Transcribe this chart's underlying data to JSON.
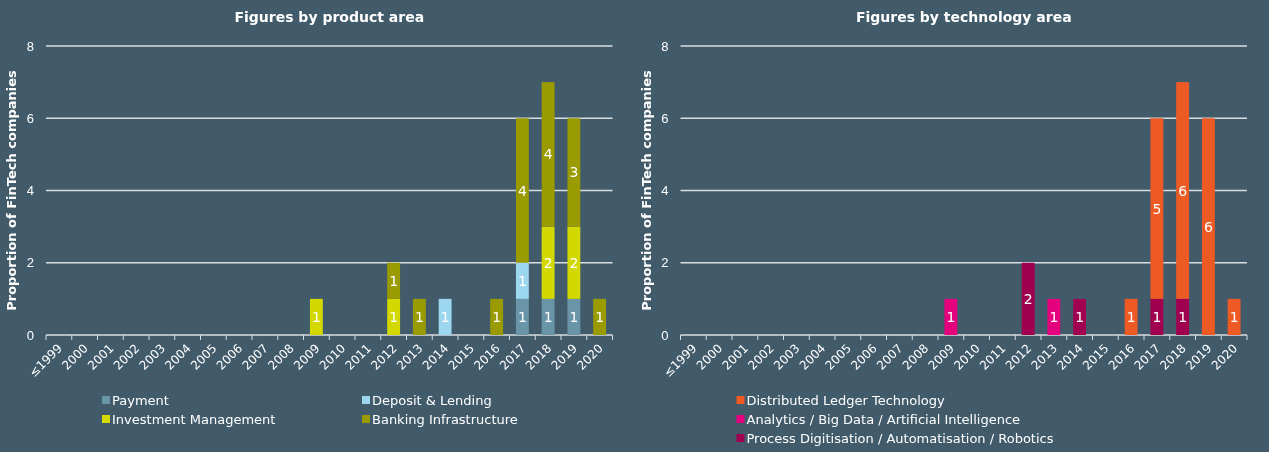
{
  "chart_data": [
    {
      "type": "bar",
      "title": "Figures by product area",
      "ylabel": "Proportion of FinTech companies",
      "categories": [
        "≤1999",
        "2000",
        "2001",
        "2002",
        "2003",
        "2004",
        "2005",
        "2006",
        "2007",
        "2008",
        "2009",
        "2010",
        "2011",
        "2012",
        "2013",
        "2014",
        "2015",
        "2016",
        "2017",
        "2018",
        "2019",
        "2020"
      ],
      "stacked": true,
      "ylim": [
        0,
        8
      ],
      "yticks": [
        0,
        2,
        4,
        6,
        8
      ],
      "grid": "y",
      "legend": "bottom",
      "data_labels": true,
      "series": [
        {
          "name": "Payment",
          "color": "#6a95a8",
          "values": [
            null,
            null,
            null,
            null,
            null,
            null,
            null,
            null,
            null,
            null,
            null,
            null,
            null,
            null,
            null,
            null,
            null,
            null,
            1,
            1,
            1,
            null
          ]
        },
        {
          "name": "Deposit & Lending",
          "color": "#9dd6ef",
          "values": [
            null,
            null,
            null,
            null,
            null,
            null,
            null,
            null,
            null,
            null,
            null,
            null,
            null,
            null,
            null,
            1,
            null,
            null,
            1,
            null,
            null,
            null
          ]
        },
        {
          "name": "Investment Management",
          "color": "#d2d800",
          "values": [
            null,
            null,
            null,
            null,
            null,
            null,
            null,
            null,
            null,
            null,
            1,
            null,
            null,
            1,
            null,
            null,
            null,
            null,
            null,
            2,
            2,
            null
          ]
        },
        {
          "name": "Banking Infrastructure",
          "color": "#999b00",
          "values": [
            null,
            null,
            null,
            null,
            null,
            null,
            null,
            null,
            null,
            null,
            null,
            null,
            null,
            1,
            1,
            null,
            null,
            1,
            4,
            4,
            3,
            1
          ]
        }
      ]
    },
    {
      "type": "bar",
      "title": "Figures by technology area",
      "ylabel": "Proportion of FinTech companies",
      "categories": [
        "≤1999",
        "2000",
        "2001",
        "2002",
        "2003",
        "2004",
        "2005",
        "2006",
        "2007",
        "2008",
        "2009",
        "2010",
        "2011",
        "2012",
        "2013",
        "2014",
        "2015",
        "2016",
        "2017",
        "2018",
        "2019",
        "2020"
      ],
      "stacked": true,
      "ylim": [
        0,
        8
      ],
      "yticks": [
        0,
        2,
        4,
        6,
        8
      ],
      "grid": "y",
      "legend": "bottom",
      "data_labels": true,
      "series": [
        {
          "name": "Process Digitisation / Automatisation / Robotics",
          "color": "#a0004f",
          "values": [
            null,
            null,
            null,
            null,
            null,
            null,
            null,
            null,
            null,
            null,
            null,
            null,
            null,
            2,
            null,
            1,
            null,
            null,
            1,
            1,
            null,
            null
          ]
        },
        {
          "name": "Analytics / Big Data / Artificial Intelligence",
          "color": "#e5007d",
          "values": [
            null,
            null,
            null,
            null,
            null,
            null,
            null,
            null,
            null,
            null,
            1,
            null,
            null,
            null,
            1,
            null,
            null,
            null,
            null,
            null,
            null,
            null
          ]
        },
        {
          "name": "Distributed Ledger Technology",
          "color": "#ee5a24",
          "values": [
            null,
            null,
            null,
            null,
            null,
            null,
            null,
            null,
            null,
            null,
            null,
            null,
            null,
            null,
            null,
            null,
            null,
            1,
            5,
            6,
            6,
            1
          ]
        }
      ]
    }
  ]
}
